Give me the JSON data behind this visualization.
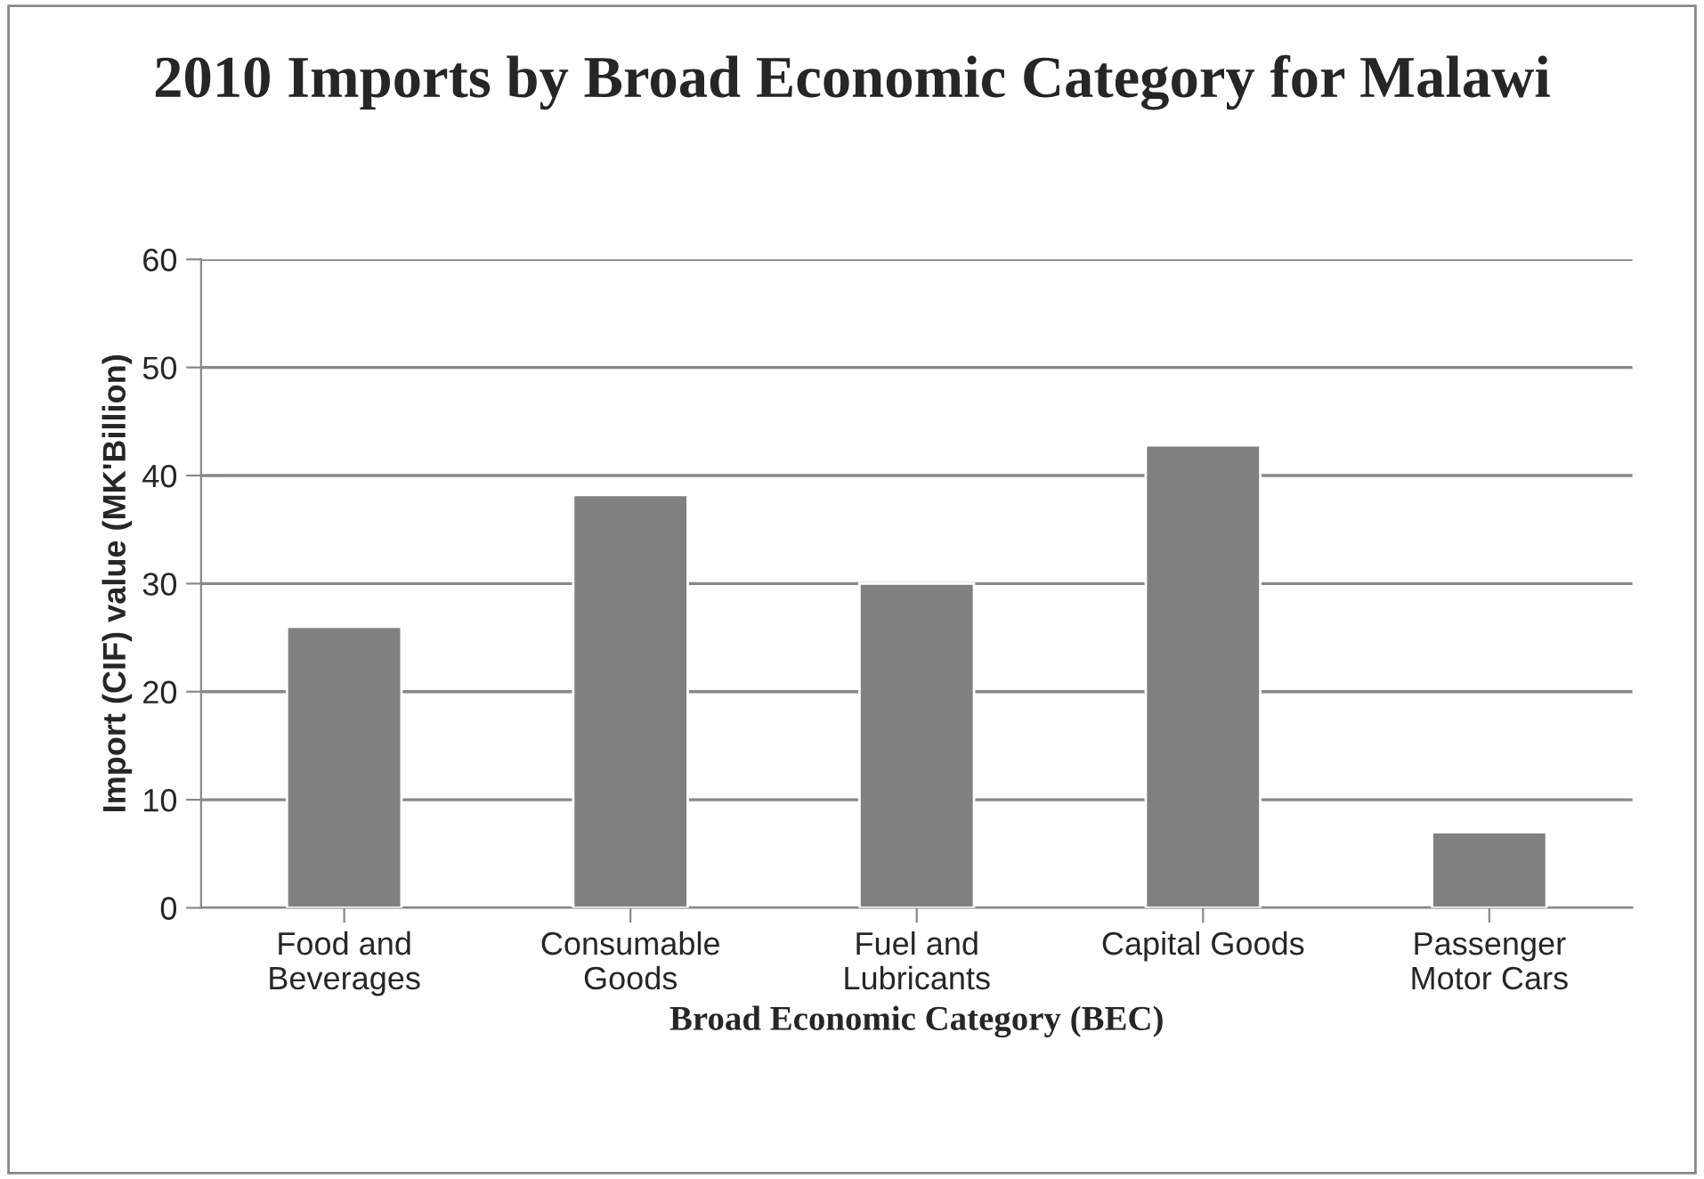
{
  "chart_data": {
    "type": "bar",
    "title": "2010 Imports by Broad Economic Category for Malawi",
    "xlabel": "Broad Economic Category (BEC)",
    "ylabel": "Import (CIF) value (MK'Billion)",
    "categories": [
      "Food and\nBeverages",
      "Consumable\nGoods",
      "Fuel and\nLubricants",
      "Capital Goods",
      "Passenger\nMotor Cars"
    ],
    "values": [
      26,
      38.2,
      30,
      42.8,
      7
    ],
    "color": "#808080",
    "ylim": [
      0,
      60
    ],
    "yticks": [
      0,
      10,
      20,
      30,
      40,
      50,
      60
    ],
    "grid": "y",
    "legend": false
  }
}
